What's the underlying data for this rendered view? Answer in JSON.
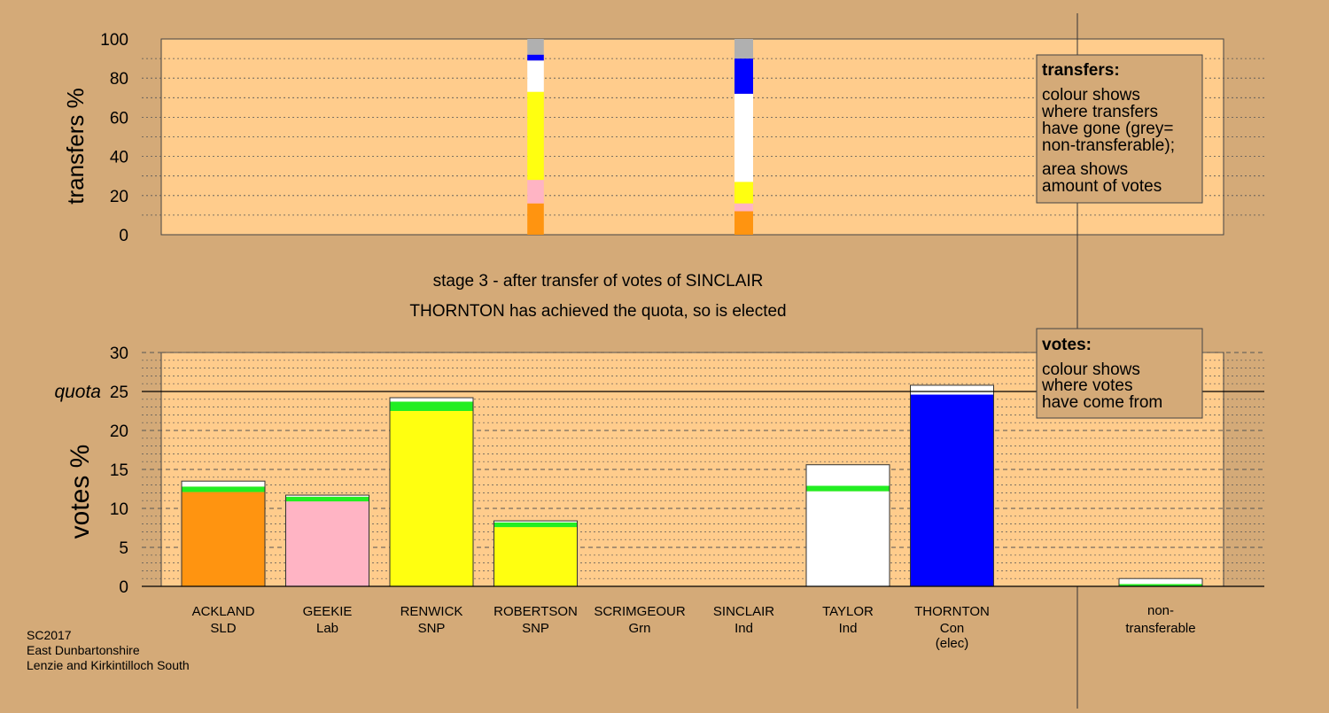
{
  "colors": {
    "background": "#d4aa78",
    "plot_area": "#ffcc8c",
    "SLD": "#ff9410",
    "Lab": "#ffb4c4",
    "SNP": "#ffff10",
    "Grn": "#22ee22",
    "Ind": "#ffffff",
    "Con": "#0000ff",
    "non_transferable": "#b0b0b0"
  },
  "chart_data": [
    {
      "name": "transfers",
      "type": "bar",
      "stacked": true,
      "ylabel": "transfers %",
      "ylim": [
        0,
        100
      ],
      "yticks": [
        0,
        20,
        40,
        60,
        80,
        100
      ],
      "grid": true,
      "bars": [
        {
          "candidate": "ROBERTSON",
          "segments": [
            {
              "party": "SLD",
              "value": 16
            },
            {
              "party": "Lab",
              "value": 12
            },
            {
              "party": "SNP",
              "value": 45
            },
            {
              "party": "Ind",
              "value": 16
            },
            {
              "party": "Con",
              "value": 3
            },
            {
              "party": "non_transferable",
              "value": 8
            }
          ]
        },
        {
          "candidate": "SINCLAIR",
          "segments": [
            {
              "party": "SLD",
              "value": 12
            },
            {
              "party": "Lab",
              "value": 4
            },
            {
              "party": "SNP",
              "value": 11
            },
            {
              "party": "Ind",
              "value": 45
            },
            {
              "party": "Con",
              "value": 18
            },
            {
              "party": "non_transferable",
              "value": 10
            }
          ]
        }
      ],
      "legend": {
        "position": "top-right",
        "title": "transfers:",
        "lines1": [
          "colour shows",
          "where transfers",
          "have gone (grey=",
          "non-transferable);"
        ],
        "lines2": [
          "area shows",
          "amount of votes"
        ]
      }
    },
    {
      "name": "votes",
      "type": "bar",
      "stacked": true,
      "ylabel": "votes %",
      "ylim": [
        0,
        30
      ],
      "yticks": [
        0,
        5,
        10,
        15,
        20,
        25,
        30
      ],
      "quota": 25,
      "quota_label": "quota",
      "grid": true,
      "categories": [
        {
          "name": "ACKLAND",
          "party": "SLD",
          "segments": [
            {
              "party": "SLD",
              "value": 12.1
            },
            {
              "party": "Grn",
              "value": 0.7
            },
            {
              "party": "Ind",
              "value": 0.7
            }
          ]
        },
        {
          "name": "GEEKIE",
          "party": "Lab",
          "segments": [
            {
              "party": "Lab",
              "value": 10.9
            },
            {
              "party": "Grn",
              "value": 0.6
            },
            {
              "party": "Ind",
              "value": 0.2
            }
          ]
        },
        {
          "name": "RENWICK",
          "party": "SNP",
          "segments": [
            {
              "party": "SNP",
              "value": 22.5
            },
            {
              "party": "Grn",
              "value": 1.2
            },
            {
              "party": "Ind",
              "value": 0.5
            }
          ]
        },
        {
          "name": "ROBERTSON",
          "party": "SNP",
          "segments": [
            {
              "party": "SNP",
              "value": 7.6
            },
            {
              "party": "Grn",
              "value": 0.6
            },
            {
              "party": "Ind",
              "value": 0.2
            }
          ]
        },
        {
          "name": "SCRIMGEOUR",
          "party": "Grn",
          "segments": []
        },
        {
          "name": "SINCLAIR",
          "party": "Ind",
          "segments": []
        },
        {
          "name": "TAYLOR",
          "party": "Ind",
          "segments": [
            {
              "party": "Ind",
              "value": 12.2
            },
            {
              "party": "Grn",
              "value": 0.7
            },
            {
              "party": "Ind",
              "value": 2.7
            }
          ]
        },
        {
          "name": "THORNTON",
          "party": "Con",
          "note": "(elec)",
          "segments": [
            {
              "party": "Con",
              "value": 24.6
            },
            {
              "party": "Ind",
              "value": 1.2
            }
          ]
        }
      ],
      "non_transferable": {
        "label1": "non-",
        "label2": "transferable",
        "segments": [
          {
            "party": "Grn",
            "value": 0.3
          },
          {
            "party": "Ind",
            "value": 0.7
          }
        ]
      },
      "legend": {
        "position": "top-right",
        "title": "votes:",
        "lines1": [
          "colour shows",
          "where votes",
          "have come from"
        ]
      }
    }
  ],
  "captions": {
    "stage": "stage 3 - after transfer of votes of SINCLAIR",
    "elected": "THORNTON has achieved the quota, so is elected"
  },
  "footer": {
    "line1": "SC2017",
    "line2": "East Dunbartonshire",
    "line3": "Lenzie and Kirkintilloch South"
  }
}
